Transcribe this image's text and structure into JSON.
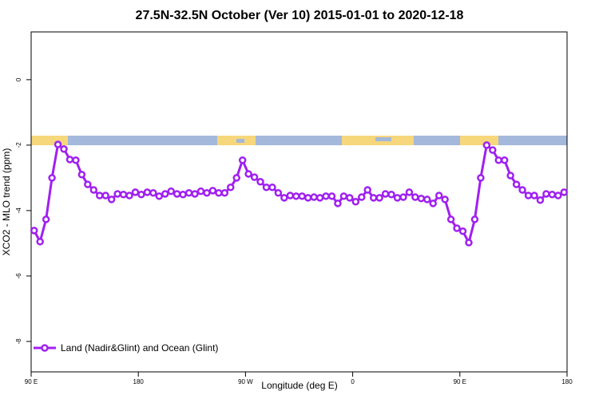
{
  "chart_data": {
    "type": "line",
    "title": "27.5N-32.5N October (Ver 10)   2015-01-01 to 2020-12-18",
    "x_label": "Longitude (deg E)",
    "y_label": "XCO2 - MLO trend (ppm)",
    "x": [
      92.5,
      97.5,
      102.5,
      107.5,
      112.5,
      117.5,
      122.5,
      127.5,
      132.5,
      137.5,
      142.5,
      147.5,
      152.5,
      157.5,
      162.5,
      167.5,
      172.5,
      177.5,
      182.5,
      187.5,
      192.5,
      197.5,
      202.5,
      207.5,
      212.5,
      217.5,
      222.5,
      227.5,
      232.5,
      237.5,
      242.5,
      247.5,
      252.5,
      257.5,
      262.5,
      267.5,
      272.5,
      277.5,
      282.5,
      287.5,
      292.5,
      297.5,
      302.5,
      307.5,
      312.5,
      317.5,
      322.5,
      327.5,
      332.5,
      337.5,
      342.5,
      347.5,
      352.5,
      357.5,
      362.5,
      367.5,
      372.5,
      377.5,
      382.5,
      387.5,
      392.5,
      397.5,
      402.5,
      407.5,
      412.5,
      417.5,
      422.5,
      427.5,
      432.5,
      437.5,
      442.5,
      447.5,
      452.5,
      457.5,
      462.5,
      467.5,
      472.5,
      477.5,
      482.5,
      487.5,
      492.5,
      497.5,
      502.5,
      507.5,
      512.5,
      517.5,
      522.5,
      527.5,
      532.5,
      537.5
    ],
    "series": [
      {
        "name": "Land (Nadir&Glint) and Ocean (Glint)",
        "color": "#a020f0",
        "values": [
          -4.61,
          -4.95,
          -4.27,
          -3.0,
          -1.98,
          -2.12,
          -2.44,
          -2.46,
          -2.9,
          -3.2,
          -3.37,
          -3.54,
          -3.54,
          -3.66,
          -3.49,
          -3.51,
          -3.54,
          -3.44,
          -3.51,
          -3.44,
          -3.46,
          -3.56,
          -3.49,
          -3.41,
          -3.49,
          -3.51,
          -3.46,
          -3.49,
          -3.41,
          -3.46,
          -3.39,
          -3.46,
          -3.46,
          -3.29,
          -3.0,
          -2.46,
          -2.88,
          -2.98,
          -3.12,
          -3.29,
          -3.29,
          -3.46,
          -3.61,
          -3.54,
          -3.56,
          -3.56,
          -3.61,
          -3.59,
          -3.61,
          -3.56,
          -3.56,
          -3.78,
          -3.56,
          -3.61,
          -3.73,
          -3.59,
          -3.37,
          -3.61,
          -3.61,
          -3.49,
          -3.51,
          -3.61,
          -3.59,
          -3.44,
          -3.59,
          -3.63,
          -3.66,
          -3.78,
          -3.54,
          -3.66,
          -4.27,
          -4.54,
          -4.63,
          -4.98,
          -4.27,
          -3.0,
          -2.0,
          -2.15,
          -2.46,
          -2.46,
          -2.93,
          -3.2,
          -3.37,
          -3.54,
          -3.54,
          -3.68,
          -3.49,
          -3.51,
          -3.54,
          -3.44
        ]
      }
    ],
    "xlim": [
      90,
      540
    ],
    "xticks": [
      {
        "value": 90,
        "label": "90 E"
      },
      180,
      {
        "value": 270,
        "label": "90 W"
      },
      {
        "value": 360,
        "label": "0"
      },
      {
        "value": 450,
        "label": "90 E"
      },
      {
        "value": 540,
        "label": "180"
      }
    ],
    "ylim": [
      -8.93,
      1.46
    ],
    "yticks": [
      0,
      -2,
      -4,
      -6,
      -8
    ],
    "legend": "bottom-left"
  }
}
